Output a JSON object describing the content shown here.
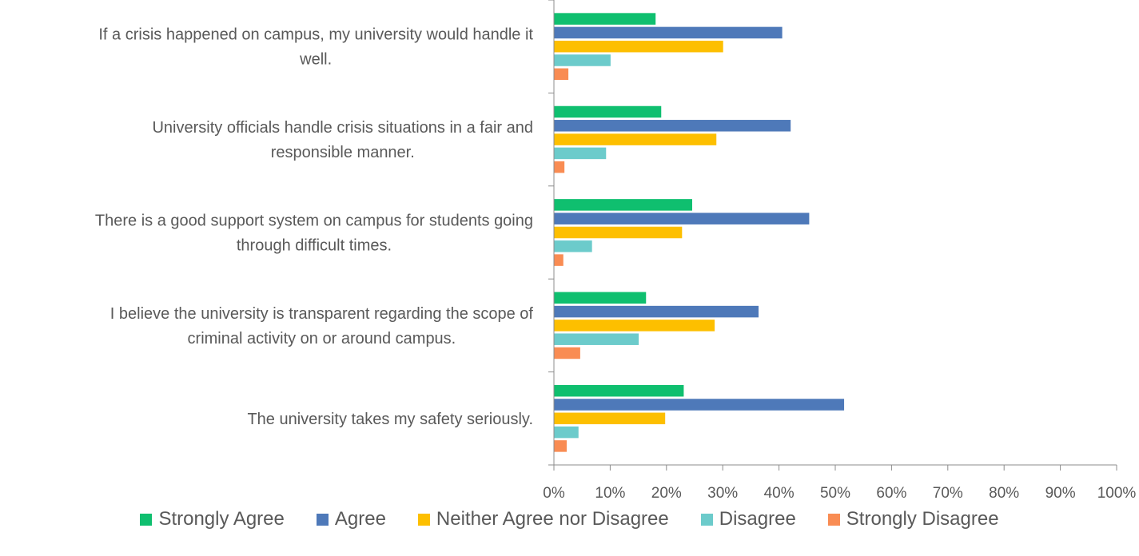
{
  "chart_data": {
    "type": "bar",
    "orientation": "horizontal",
    "title": "",
    "xlabel": "",
    "ylabel": "",
    "xlim": [
      0,
      1
    ],
    "x_ticks": [
      "0%",
      "10%",
      "20%",
      "30%",
      "40%",
      "50%",
      "60%",
      "70%",
      "80%",
      "90%",
      "100%"
    ],
    "categories": [
      [
        "If a crisis happened on campus, my university would handle it",
        "well."
      ],
      [
        "University officials handle crisis situations in a fair and",
        "responsible manner."
      ],
      [
        "There is a good support system on campus for students going",
        "through difficult times."
      ],
      [
        "I believe the university is transparent regarding the scope of",
        "criminal activity on or around campus."
      ],
      [
        "The university takes my safety seriously."
      ]
    ],
    "series": [
      {
        "name": "Strongly Agree",
        "color": "#0fbf6f",
        "values": [
          0.18,
          0.19,
          0.245,
          0.163,
          0.23
        ]
      },
      {
        "name": "Agree",
        "color": "#4e79b9",
        "values": [
          0.405,
          0.42,
          0.453,
          0.363,
          0.515
        ]
      },
      {
        "name": "Neither Agree nor Disagree",
        "color": "#fdbf00",
        "values": [
          0.3,
          0.288,
          0.227,
          0.285,
          0.197
        ]
      },
      {
        "name": "Disagree",
        "color": "#6ccbcb",
        "values": [
          0.1,
          0.092,
          0.067,
          0.15,
          0.043
        ]
      },
      {
        "name": "Strongly Disagree",
        "color": "#f98c53",
        "values": [
          0.025,
          0.018,
          0.016,
          0.046,
          0.022
        ]
      }
    ],
    "legend_position": "bottom",
    "grid": false
  }
}
